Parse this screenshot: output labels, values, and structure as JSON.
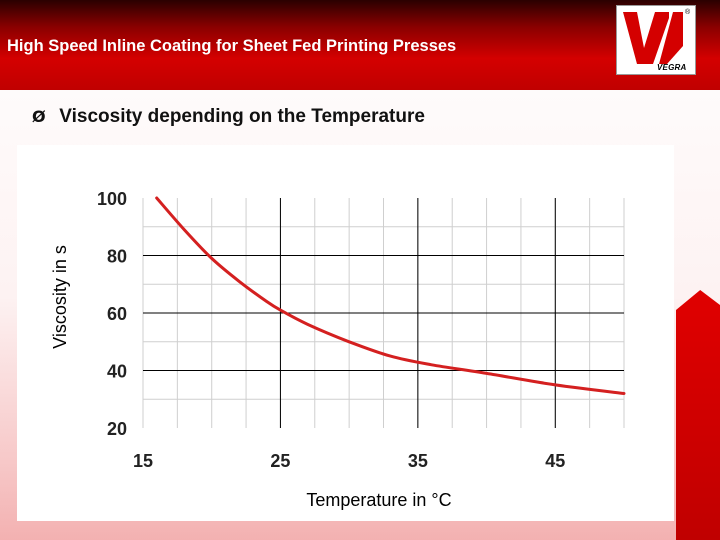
{
  "header": {
    "title": "High Speed Inline Coating for Sheet Fed Printing Presses",
    "logo_text": "VEGRA",
    "logo_registered": "®"
  },
  "bullet": {
    "arrow": "Ø",
    "text": "Viscosity depending on the Temperature"
  },
  "colors": {
    "header_red": "#d40000",
    "curve": "#d42020",
    "grid_dark": "#000000",
    "grid_light": "#cfcfcf"
  },
  "chart_data": {
    "type": "line",
    "xlabel": "Temperature in °C",
    "ylabel": "Viscosity in s",
    "x_ticks": [
      15,
      25,
      35,
      45
    ],
    "y_ticks": [
      100,
      80,
      60,
      40,
      20
    ],
    "xlim": [
      15,
      50
    ],
    "ylim": [
      20,
      100
    ],
    "grid": true,
    "series": [
      {
        "x": [
          16,
          18,
          20,
          22,
          24,
          25,
          27,
          30,
          33,
          36,
          40,
          45,
          50
        ],
        "y": [
          100,
          89,
          79,
          71,
          64,
          61,
          56,
          50,
          45,
          42,
          39,
          35,
          32
        ]
      }
    ]
  }
}
